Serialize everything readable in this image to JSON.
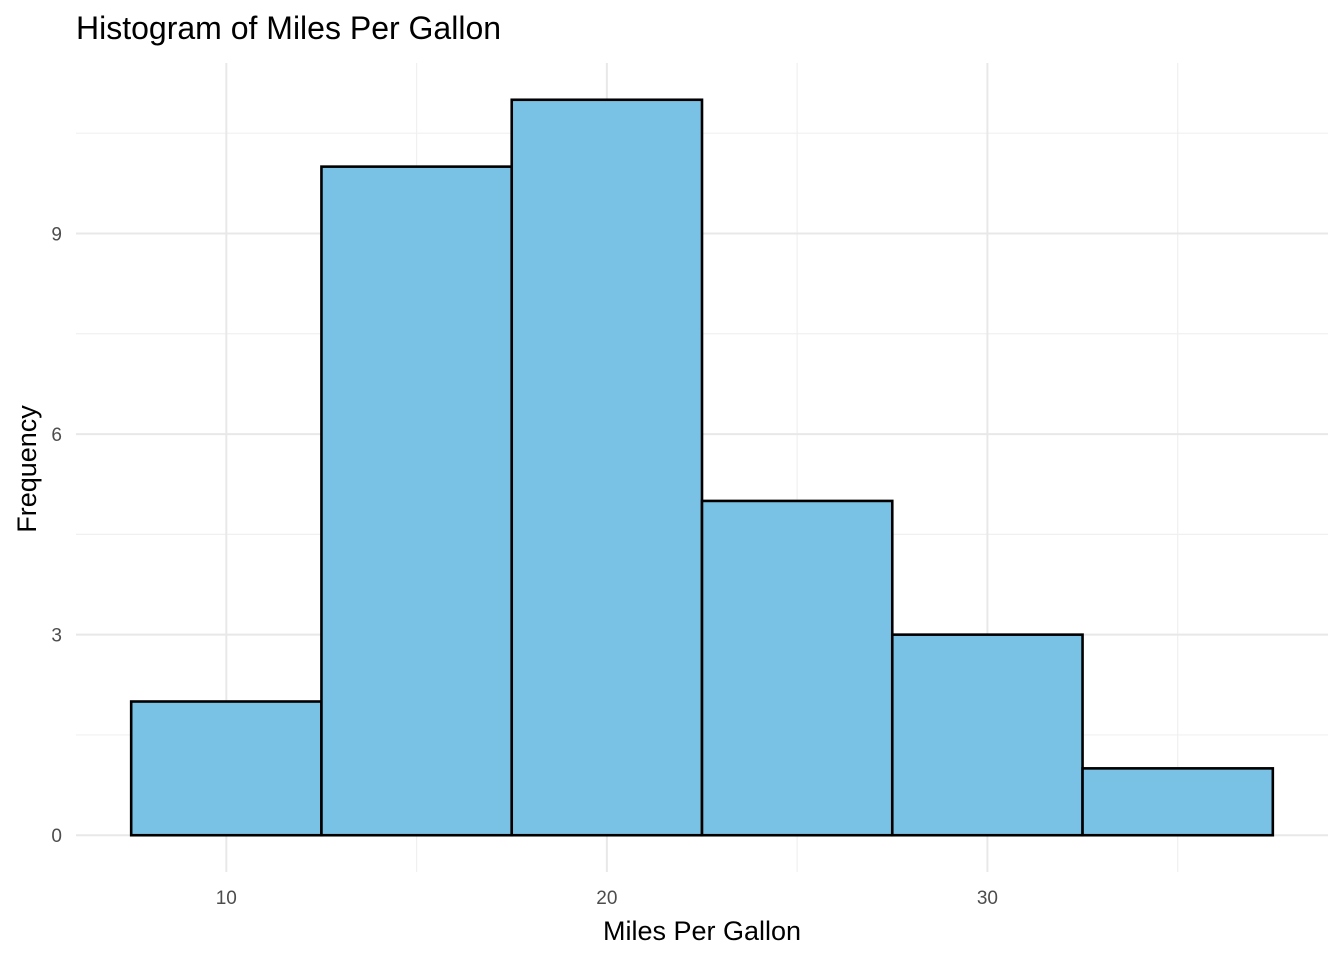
{
  "chart_data": {
    "type": "bar",
    "title": "Histogram of Miles Per Gallon",
    "xlabel": "Miles Per Gallon",
    "ylabel": "Frequency",
    "bins": [
      {
        "x_start": 7.5,
        "x_end": 12.5,
        "count": 2
      },
      {
        "x_start": 12.5,
        "x_end": 17.5,
        "count": 10
      },
      {
        "x_start": 17.5,
        "x_end": 22.5,
        "count": 11
      },
      {
        "x_start": 22.5,
        "x_end": 27.5,
        "count": 5
      },
      {
        "x_start": 27.5,
        "x_end": 32.5,
        "count": 3
      },
      {
        "x_start": 32.5,
        "x_end": 37.5,
        "count": 1
      }
    ],
    "xlim": [
      6.05,
      38.95
    ],
    "ylim": [
      -0.55,
      11.55
    ],
    "x_ticks": [
      10,
      20,
      30
    ],
    "x_tick_labels": [
      "10",
      "20",
      "30"
    ],
    "x_minor_ticks": [
      15,
      25,
      35
    ],
    "y_ticks": [
      0,
      3,
      6,
      9
    ],
    "y_tick_labels": [
      "0",
      "3",
      "6",
      "9"
    ],
    "y_minor_ticks": [
      1.5,
      4.5,
      7.5,
      10.5
    ],
    "grid": true,
    "legend": "none",
    "bar_fill": "#7AC2E5",
    "bar_outline": "#000000"
  }
}
